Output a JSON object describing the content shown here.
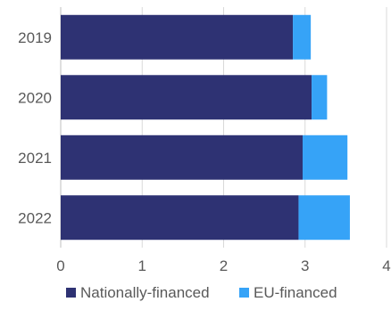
{
  "chart_data": {
    "type": "bar",
    "orientation": "horizontal",
    "stacked": true,
    "categories": [
      "2019",
      "2020",
      "2021",
      "2022"
    ],
    "series": [
      {
        "name": "Nationally-financed",
        "color": "#2e3273",
        "values": [
          2.85,
          3.08,
          2.97,
          2.92
        ]
      },
      {
        "name": "EU-financed",
        "color": "#36a3f7",
        "values": [
          0.22,
          0.19,
          0.55,
          0.63
        ]
      }
    ],
    "xlim": [
      0,
      4
    ],
    "x_ticks": [
      0,
      1,
      2,
      3,
      4
    ],
    "tick_labels": [
      "0",
      "1",
      "2",
      "3",
      "4"
    ],
    "grid": true,
    "legend_position": "bottom",
    "title": "",
    "xlabel": "",
    "ylabel": ""
  }
}
